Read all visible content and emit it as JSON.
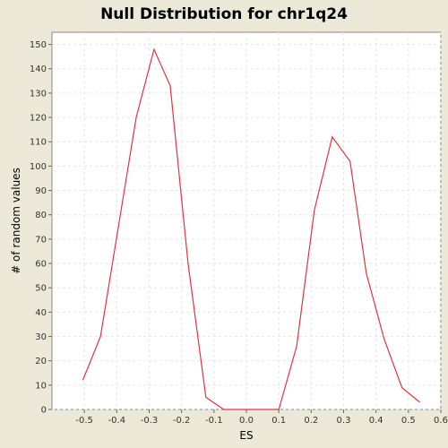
{
  "chart_data": {
    "type": "line",
    "title": "Null Distribution for chr1q24",
    "xlabel": "ES",
    "ylabel": "# of random values",
    "xlim": [
      -0.6,
      0.6
    ],
    "ylim": [
      0,
      155
    ],
    "x_ticks": [
      "-0.5",
      "-0.4",
      "-0.3",
      "-0.2",
      "-0.1",
      "0.0",
      "0.1",
      "0.2",
      "0.3",
      "0.4",
      "0.5",
      "0.6"
    ],
    "y_ticks": [
      "0",
      "10",
      "20",
      "30",
      "40",
      "50",
      "60",
      "70",
      "80",
      "90",
      "100",
      "110",
      "120",
      "130",
      "140",
      "150"
    ],
    "grid": true,
    "series": [
      {
        "color": "#e8323c",
        "x": [
          -0.505,
          -0.45,
          -0.395,
          -0.34,
          -0.285,
          -0.235,
          -0.18,
          -0.125,
          -0.07,
          -0.015,
          0.04,
          0.1,
          0.155,
          0.21,
          0.265,
          0.32,
          0.37,
          0.425,
          0.48,
          0.535
        ],
        "y": [
          12,
          30,
          75,
          120,
          148,
          133,
          60,
          5,
          0,
          0,
          0,
          0,
          26,
          82,
          112,
          102,
          56,
          29,
          9,
          3
        ]
      }
    ]
  },
  "colors": {
    "background": "#ece9d8",
    "plot_bg": "#ffffff",
    "grid": "#e6e6e6",
    "line": "#e8323c"
  }
}
